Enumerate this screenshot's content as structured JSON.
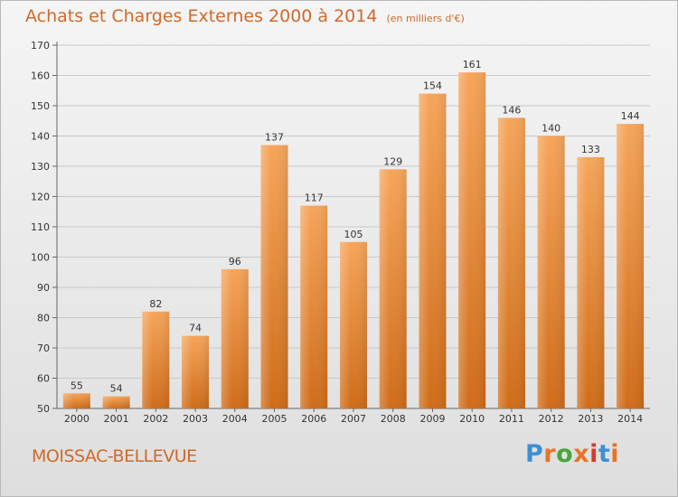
{
  "title": "Achats et Charges Externes 2000 à 2014",
  "subtitle": "(en milliers d'€)",
  "place": "MOISSAC-BELLEVUE",
  "logo": {
    "text": "Proxiti",
    "colors": [
      "#3f8fd2",
      "#e8742a",
      "#4aa63c",
      "#e8742a",
      "#d43b2a",
      "#3f8fd2",
      "#e8742a"
    ]
  },
  "colors": {
    "bar": "#e8842c",
    "bar_light": "#f6a55a",
    "bar_dark": "#d2711f",
    "accent_text": "#d0692a"
  },
  "chart_data": {
    "type": "bar",
    "categories": [
      "2000",
      "2001",
      "2002",
      "2003",
      "2004",
      "2005",
      "2006",
      "2007",
      "2008",
      "2009",
      "2010",
      "2011",
      "2012",
      "2013",
      "2014"
    ],
    "values": [
      55,
      54,
      82,
      74,
      96,
      137,
      117,
      105,
      129,
      154,
      161,
      146,
      140,
      133,
      144
    ],
    "ylim": [
      50,
      170
    ],
    "yticks": [
      50,
      60,
      70,
      80,
      90,
      100,
      110,
      120,
      130,
      140,
      150,
      160,
      170
    ],
    "grid": true
  }
}
